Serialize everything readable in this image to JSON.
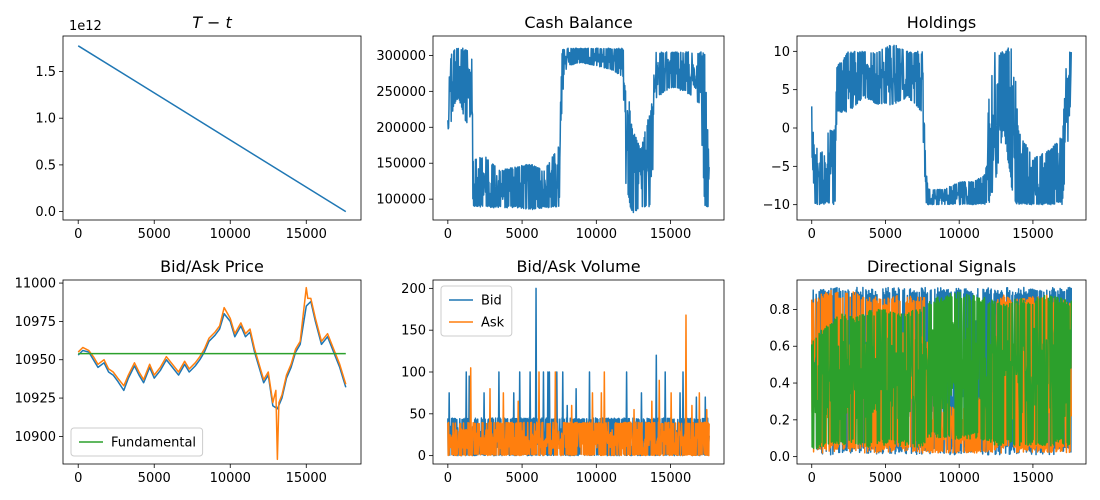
{
  "colors": {
    "blue": "#1f77b4",
    "orange": "#ff7f0e",
    "green": "#2ca02c"
  },
  "chart_data": [
    {
      "type": "line",
      "title": "T − t",
      "title_italic": true,
      "offset_text": "1e12",
      "xlim": [
        -1000,
        18600
      ],
      "ylim": [
        -0.09,
        1.88
      ],
      "xticks": [
        0,
        5000,
        10000,
        15000
      ],
      "xtick_labels": [
        "0",
        "5000",
        "10000",
        "15000"
      ],
      "yticks": [
        0.0,
        0.5,
        1.0,
        1.5
      ],
      "ytick_labels": [
        "0.0",
        "0.5",
        "1.0",
        "1.5"
      ],
      "series": [
        {
          "color": "#1f77b4",
          "x": [
            0,
            17600
          ],
          "y": [
            1.775,
            0.0
          ]
        }
      ]
    },
    {
      "type": "line",
      "title": "Cash Balance",
      "xlim": [
        -1000,
        18600
      ],
      "ylim": [
        71000,
        327000
      ],
      "xticks": [
        0,
        5000,
        10000,
        15000
      ],
      "xtick_labels": [
        "0",
        "5000",
        "10000",
        "15000"
      ],
      "yticks": [
        100000,
        150000,
        200000,
        250000,
        300000
      ],
      "ytick_labels": [
        "100000",
        "150000",
        "200000",
        "250000",
        "300000"
      ],
      "series": [
        {
          "color": "#1f77b4",
          "band": {
            "x": [
              0,
              200,
              400,
              700,
              1000,
              1300,
              1600,
              1700,
              2500,
              3500,
              4500,
              5500,
              6500,
              7500,
              7700,
              8000,
              9000,
              10000,
              11000,
              11800,
              12000,
              12400,
              13000,
              13700,
              14000,
              15000,
              16000,
              17000,
              17300,
              17600
            ],
            "high": [
              240000,
              300000,
              310000,
              310000,
              310000,
              310000,
              310000,
              155000,
              160000,
              140000,
              145000,
              150000,
              140000,
              175000,
              310000,
              310000,
              310000,
              310000,
              310000,
              310000,
              290000,
              200000,
              170000,
              230000,
              305000,
              305000,
              305000,
              305000,
              305000,
              145000
            ],
            "low": [
              165000,
              200000,
              230000,
              240000,
              220000,
              200000,
              150000,
              90000,
              88000,
              88000,
              88000,
              85000,
              88000,
              88000,
              240000,
              285000,
              290000,
              285000,
              280000,
              270000,
              110000,
              80000,
              85000,
              88000,
              240000,
              255000,
              250000,
              230000,
              90000,
              88000
            ]
          }
        }
      ]
    },
    {
      "type": "line",
      "title": "Holdings",
      "xlim": [
        -1000,
        18600
      ],
      "ylim": [
        -12.0,
        12.0
      ],
      "xticks": [
        0,
        5000,
        10000,
        15000
      ],
      "xtick_labels": [
        "0",
        "5000",
        "10000",
        "15000"
      ],
      "yticks": [
        -10,
        -5,
        0,
        5,
        10
      ],
      "ytick_labels": [
        "−10",
        "−5",
        "0",
        "5",
        "10"
      ],
      "series": [
        {
          "color": "#1f77b4",
          "band": {
            "x": [
              0,
              200,
              400,
              700,
              1000,
              1300,
              1600,
              1700,
              2500,
              3500,
              4500,
              5500,
              6500,
              7500,
              7700,
              8000,
              9000,
              10000,
              11000,
              11800,
              12000,
              12400,
              13000,
              13700,
              14000,
              15000,
              16000,
              17000,
              17300,
              17600
            ],
            "high": [
              3,
              -1,
              -3,
              -3,
              -1,
              0,
              0,
              8,
              10,
              10,
              10,
              11,
              10,
              10,
              -3,
              -8,
              -8,
              -7,
              -7,
              -6,
              4,
              10,
              10,
              11,
              0,
              -4,
              -3,
              -1,
              10,
              10
            ],
            "low": [
              -3,
              -10,
              -10,
              -10,
              -10,
              -10,
              -10,
              2,
              2,
              4,
              3,
              3,
              4,
              2,
              -10,
              -10,
              -10,
              -10,
              -10,
              -10,
              -10,
              -8,
              0,
              -10,
              -10,
              -10,
              -10,
              -10,
              -4,
              5
            ]
          }
        }
      ]
    },
    {
      "type": "line",
      "title": "Bid/Ask Price",
      "xlim": [
        -1000,
        18600
      ],
      "ylim": [
        10882,
        11002
      ],
      "xticks": [
        0,
        5000,
        10000,
        15000
      ],
      "xtick_labels": [
        "0",
        "5000",
        "10000",
        "15000"
      ],
      "yticks": [
        10900,
        10925,
        10950,
        10975,
        11000
      ],
      "ytick_labels": [
        "10900",
        "10925",
        "10950",
        "10975",
        "11000"
      ],
      "legend": {
        "loc": "lower-left",
        "entries": [
          {
            "label": "Fundamental",
            "color": "#2ca02c"
          }
        ]
      },
      "series": [
        {
          "color": "#1f77b4",
          "x": [
            0,
            300,
            700,
            1000,
            1300,
            1700,
            2000,
            2300,
            2600,
            3000,
            3300,
            3700,
            4000,
            4300,
            4700,
            5000,
            5400,
            5800,
            6200,
            6600,
            7000,
            7300,
            7700,
            8000,
            8300,
            8600,
            9000,
            9300,
            9600,
            10000,
            10300,
            10700,
            11000,
            11300,
            11600,
            11900,
            12200,
            12500,
            12800,
            13100,
            13400,
            13700,
            14000,
            14300,
            14600,
            15000,
            15300,
            15600,
            16000,
            16400,
            16800,
            17200,
            17600
          ],
          "y": [
            10953,
            10956,
            10955,
            10950,
            10945,
            10948,
            10942,
            10940,
            10936,
            10930,
            10938,
            10946,
            10940,
            10935,
            10945,
            10938,
            10943,
            10950,
            10945,
            10940,
            10947,
            10942,
            10946,
            10950,
            10955,
            10962,
            10966,
            10970,
            10980,
            10975,
            10965,
            10972,
            10965,
            10968,
            10955,
            10945,
            10935,
            10940,
            10920,
            10918,
            10925,
            10938,
            10945,
            10955,
            10960,
            10985,
            10988,
            10975,
            10960,
            10965,
            10955,
            10945,
            10932
          ]
        },
        {
          "color": "#ff7f0e",
          "x": [
            0,
            300,
            700,
            1000,
            1300,
            1700,
            2000,
            2300,
            2600,
            3000,
            3300,
            3700,
            4000,
            4300,
            4700,
            5000,
            5400,
            5800,
            6200,
            6600,
            7000,
            7300,
            7700,
            8000,
            8300,
            8600,
            9000,
            9300,
            9600,
            10000,
            10300,
            10700,
            11000,
            11300,
            11600,
            11900,
            12200,
            12500,
            12800,
            13000,
            13100,
            13200,
            13400,
            13700,
            14000,
            14300,
            14600,
            15000,
            15100,
            15300,
            15600,
            16000,
            16400,
            16800,
            17200,
            17600
          ],
          "y": [
            10955,
            10958,
            10956,
            10952,
            10947,
            10950,
            10944,
            10942,
            10938,
            10933,
            10940,
            10948,
            10942,
            10937,
            10947,
            10940,
            10945,
            10952,
            10947,
            10942,
            10949,
            10944,
            10948,
            10952,
            10957,
            10964,
            10968,
            10972,
            10984,
            10977,
            10967,
            10974,
            10967,
            10970,
            10957,
            10947,
            10937,
            10942,
            10922,
            10930,
            10885,
            10922,
            10927,
            10940,
            10947,
            10957,
            10962,
            10997,
            10990,
            10990,
            10977,
            10962,
            10967,
            10957,
            10947,
            10934
          ]
        },
        {
          "name": "Fundamental",
          "color": "#2ca02c",
          "x": [
            0,
            17600
          ],
          "y": [
            10954,
            10954
          ]
        }
      ]
    },
    {
      "type": "line",
      "title": "Bid/Ask Volume",
      "xlim": [
        -1000,
        18600
      ],
      "ylim": [
        -10,
        210
      ],
      "xticks": [
        0,
        5000,
        10000,
        15000
      ],
      "xtick_labels": [
        "0",
        "5000",
        "10000",
        "15000"
      ],
      "yticks": [
        0,
        50,
        100,
        150,
        200
      ],
      "ytick_labels": [
        "0",
        "50",
        "100",
        "150",
        "200"
      ],
      "legend": {
        "loc": "upper-left",
        "entries": [
          {
            "label": "Bid",
            "color": "#1f77b4"
          },
          {
            "label": "Ask",
            "color": "#ff7f0e"
          }
        ]
      },
      "series": [
        {
          "name": "Bid",
          "color": "#1f77b4",
          "band": {
            "x": [
              0,
              17600
            ],
            "high": [
              45,
              45
            ],
            "low": [
              0,
              0
            ]
          },
          "spikes": [
            [
              50,
              75
            ],
            [
              1200,
              100
            ],
            [
              1400,
              95
            ],
            [
              2400,
              75
            ],
            [
              3400,
              100
            ],
            [
              4400,
              75
            ],
            [
              4800,
              100
            ],
            [
              5500,
              100
            ],
            [
              5900,
              200
            ],
            [
              6400,
              100
            ],
            [
              6700,
              100
            ],
            [
              6800,
              100
            ],
            [
              7300,
              100
            ],
            [
              7700,
              100
            ],
            [
              8000,
              60
            ],
            [
              8600,
              80
            ],
            [
              9500,
              100
            ],
            [
              12000,
              100
            ],
            [
              13000,
              75
            ],
            [
              14000,
              120
            ],
            [
              14600,
              100
            ],
            [
              15600,
              75
            ],
            [
              15800,
              100
            ],
            [
              16700,
              70
            ],
            [
              17300,
              70
            ]
          ]
        },
        {
          "name": "Ask",
          "color": "#ff7f0e",
          "band": {
            "x": [
              0,
              17600
            ],
            "high": [
              40,
              40
            ],
            "low": [
              0,
              0
            ]
          },
          "spikes": [
            [
              1500,
              105
            ],
            [
              2800,
              80
            ],
            [
              3700,
              75
            ],
            [
              4700,
              65
            ],
            [
              6100,
              100
            ],
            [
              7200,
              100
            ],
            [
              8300,
              60
            ],
            [
              9700,
              75
            ],
            [
              10300,
              75
            ],
            [
              10500,
              100
            ],
            [
              12500,
              55
            ],
            [
              13700,
              65
            ],
            [
              14200,
              90
            ],
            [
              15000,
              75
            ],
            [
              16000,
              168
            ],
            [
              16400,
              60
            ],
            [
              16900,
              75
            ],
            [
              17400,
              55
            ]
          ]
        }
      ]
    },
    {
      "type": "line",
      "title": "Directional Signals",
      "xlim": [
        -1000,
        18600
      ],
      "ylim": [
        -0.04,
        0.96
      ],
      "xticks": [
        0,
        5000,
        10000,
        15000
      ],
      "xtick_labels": [
        "0",
        "5000",
        "10000",
        "15000"
      ],
      "yticks": [
        0.0,
        0.2,
        0.4,
        0.6,
        0.8
      ],
      "ytick_labels": [
        "0.0",
        "0.2",
        "0.4",
        "0.6",
        "0.8"
      ],
      "series": [
        {
          "color": "#1f77b4",
          "band": {
            "x": [
              0,
              17600
            ],
            "high": [
              0.92,
              0.92
            ],
            "low": [
              0.01,
              0.01
            ]
          }
        },
        {
          "color": "#ff7f0e",
          "band": {
            "x": [
              0,
              1000,
              2000,
              3000,
              4000,
              5000,
              6000,
              7000,
              7700,
              8000,
              9000,
              10000,
              11000,
              12000,
              12500,
              13000,
              14000,
              15000,
              16000,
              17000,
              17600
            ],
            "high": [
              0.86,
              0.91,
              0.89,
              0.9,
              0.88,
              0.86,
              0.88,
              0.87,
              0.88,
              0.35,
              0.3,
              0.25,
              0.3,
              0.35,
              0.86,
              0.88,
              0.86,
              0.87,
              0.88,
              0.86,
              0.84
            ],
            "low": [
              0.02,
              0.02,
              0.03,
              0.02,
              0.02,
              0.02,
              0.03,
              0.02,
              0.02,
              0.02,
              0.02,
              0.02,
              0.02,
              0.02,
              0.02,
              0.02,
              0.02,
              0.02,
              0.02,
              0.02,
              0.02
            ]
          }
        },
        {
          "color": "#2ca02c",
          "band": {
            "x": [
              0,
              1000,
              2000,
              3000,
              4000,
              5000,
              6000,
              7000,
              7700,
              8000,
              9000,
              10000,
              11000,
              12000,
              12500,
              13000,
              14000,
              15000,
              16000,
              17000,
              17600
            ],
            "high": [
              0.62,
              0.72,
              0.78,
              0.76,
              0.8,
              0.8,
              0.78,
              0.8,
              0.82,
              0.86,
              0.88,
              0.9,
              0.88,
              0.86,
              0.84,
              0.84,
              0.86,
              0.86,
              0.88,
              0.86,
              0.85
            ],
            "low": [
              0.04,
              0.05,
              0.06,
              0.06,
              0.05,
              0.06,
              0.06,
              0.05,
              0.06,
              0.1,
              0.1,
              0.08,
              0.1,
              0.08,
              0.05,
              0.06,
              0.06,
              0.06,
              0.05,
              0.06,
              0.06
            ]
          }
        }
      ]
    }
  ]
}
